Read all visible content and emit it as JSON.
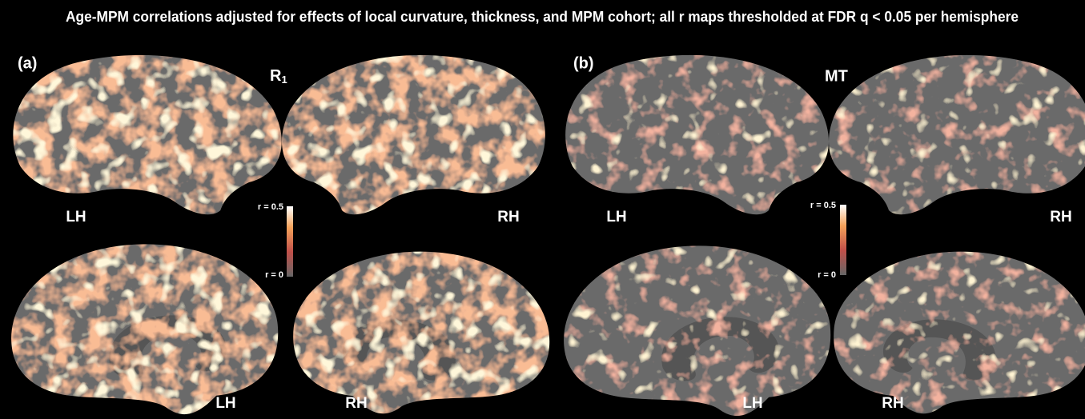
{
  "title": "Age-MPM correlations adjusted for effects of local curvature, thickness, and MPM cohort; all r maps thresholded at FDR q < 0.05 per hemisphere",
  "panels": [
    {
      "label": "(a)",
      "measure": "R",
      "measure_subscript": "1",
      "lateral_left": "LH",
      "lateral_right": "RH",
      "medial_left": "LH",
      "medial_right": "RH",
      "colorbar_max": "r = 0.5",
      "colorbar_min": "r = 0"
    },
    {
      "label": "(b)",
      "measure": "MT",
      "lateral_left": "LH",
      "lateral_right": "RH",
      "medial_left": "LH",
      "medial_right": "RH",
      "colorbar_max": "r = 0.5",
      "colorbar_min": "r = 0"
    }
  ]
}
